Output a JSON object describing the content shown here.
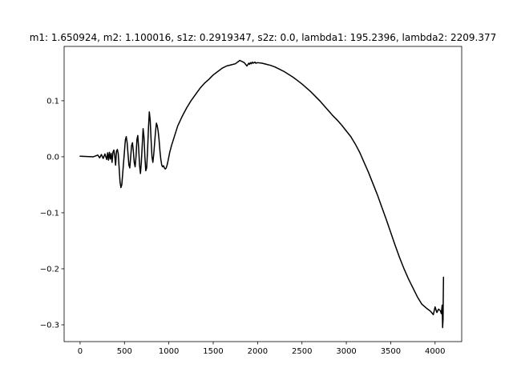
{
  "chart_data": {
    "type": "line",
    "title": "m1: 1.650924, m2: 1.100016, s1z: 0.2919347, s2z: 0.0, lambda1: 195.2396, lambda2: 2209.377",
    "xlabel": "",
    "ylabel": "",
    "xlim": [
      -180,
      4300
    ],
    "ylim": [
      -0.33,
      0.197
    ],
    "xticks": [
      0,
      500,
      1000,
      1500,
      2000,
      2500,
      3000,
      3500,
      4000
    ],
    "yticks": [
      0.1,
      0.0,
      -0.1,
      -0.2,
      -0.3
    ],
    "xtick_labels": [
      "0",
      "500",
      "1000",
      "1500",
      "2000",
      "2500",
      "3000",
      "3500",
      "4000"
    ],
    "ytick_labels": [
      "0.1",
      "0.0",
      "−0.1",
      "−0.2",
      "−0.3"
    ],
    "grid": false,
    "series": [
      {
        "color": "#000000",
        "x": [
          0,
          150,
          200,
          220,
          240,
          260,
          280,
          300,
          310,
          320,
          330,
          340,
          350,
          360,
          370,
          380,
          390,
          400,
          410,
          420,
          430,
          440,
          450,
          460,
          470,
          480,
          490,
          500,
          510,
          520,
          530,
          540,
          550,
          560,
          570,
          580,
          590,
          600,
          610,
          620,
          630,
          640,
          650,
          660,
          670,
          680,
          690,
          700,
          710,
          720,
          730,
          740,
          750,
          760,
          770,
          780,
          790,
          800,
          810,
          820,
          830,
          840,
          850,
          860,
          870,
          880,
          890,
          900,
          910,
          920,
          930,
          940,
          950,
          960,
          970,
          980,
          990,
          1000,
          1010,
          1020,
          1030,
          1040,
          1050,
          1070,
          1100,
          1150,
          1200,
          1250,
          1300,
          1350,
          1400,
          1450,
          1500,
          1550,
          1600,
          1650,
          1700,
          1750,
          1800,
          1850,
          1880,
          1900,
          1910,
          1920,
          1930,
          1940,
          1950,
          1960,
          1970,
          1980,
          2000,
          2050,
          2100,
          2150,
          2200,
          2250,
          2300,
          2350,
          2400,
          2450,
          2500,
          2550,
          2600,
          2650,
          2700,
          2750,
          2800,
          2850,
          2900,
          2950,
          3000,
          3050,
          3100,
          3150,
          3200,
          3250,
          3300,
          3350,
          3400,
          3450,
          3500,
          3550,
          3600,
          3650,
          3700,
          3750,
          3800,
          3850,
          3900,
          3950,
          3980,
          4000,
          4020,
          4040,
          4060,
          4070,
          4080,
          4085,
          4090,
          4092,
          4095
        ],
        "values": [
          0.001,
          0.0,
          0.003,
          -0.002,
          0.004,
          -0.003,
          0.005,
          -0.005,
          0.007,
          -0.006,
          0.008,
          -0.004,
          0.006,
          -0.01,
          0.008,
          0.012,
          0.002,
          -0.015,
          0.01,
          0.013,
          0.005,
          -0.02,
          -0.045,
          -0.055,
          -0.05,
          -0.03,
          -0.01,
          0.01,
          0.03,
          0.036,
          0.025,
          0.005,
          -0.015,
          -0.02,
          0.0,
          0.02,
          0.025,
          0.01,
          -0.01,
          -0.018,
          0.0,
          0.03,
          0.038,
          0.015,
          -0.015,
          -0.03,
          -0.01,
          0.02,
          0.05,
          0.035,
          0.0,
          -0.025,
          -0.02,
          0.01,
          0.05,
          0.08,
          0.065,
          0.03,
          0.0,
          -0.01,
          0.005,
          0.025,
          0.045,
          0.06,
          0.055,
          0.045,
          0.03,
          0.01,
          -0.005,
          -0.015,
          -0.018,
          -0.016,
          -0.02,
          -0.022,
          -0.02,
          -0.015,
          -0.008,
          0.0,
          0.008,
          0.014,
          0.02,
          0.025,
          0.03,
          0.04,
          0.055,
          0.072,
          0.087,
          0.1,
          0.111,
          0.122,
          0.131,
          0.138,
          0.146,
          0.152,
          0.158,
          0.162,
          0.164,
          0.166,
          0.172,
          0.168,
          0.162,
          0.167,
          0.165,
          0.168,
          0.166,
          0.169,
          0.167,
          0.168,
          0.169,
          0.167,
          0.168,
          0.167,
          0.165,
          0.163,
          0.16,
          0.156,
          0.152,
          0.147,
          0.142,
          0.136,
          0.13,
          0.123,
          0.116,
          0.108,
          0.1,
          0.091,
          0.082,
          0.073,
          0.065,
          0.056,
          0.046,
          0.036,
          0.023,
          0.008,
          -0.01,
          -0.028,
          -0.048,
          -0.068,
          -0.09,
          -0.112,
          -0.135,
          -0.158,
          -0.18,
          -0.2,
          -0.218,
          -0.234,
          -0.25,
          -0.263,
          -0.27,
          -0.276,
          -0.282,
          -0.268,
          -0.278,
          -0.272,
          -0.275,
          -0.28,
          -0.265,
          -0.305,
          -0.29,
          -0.255,
          -0.215
        ]
      }
    ]
  }
}
